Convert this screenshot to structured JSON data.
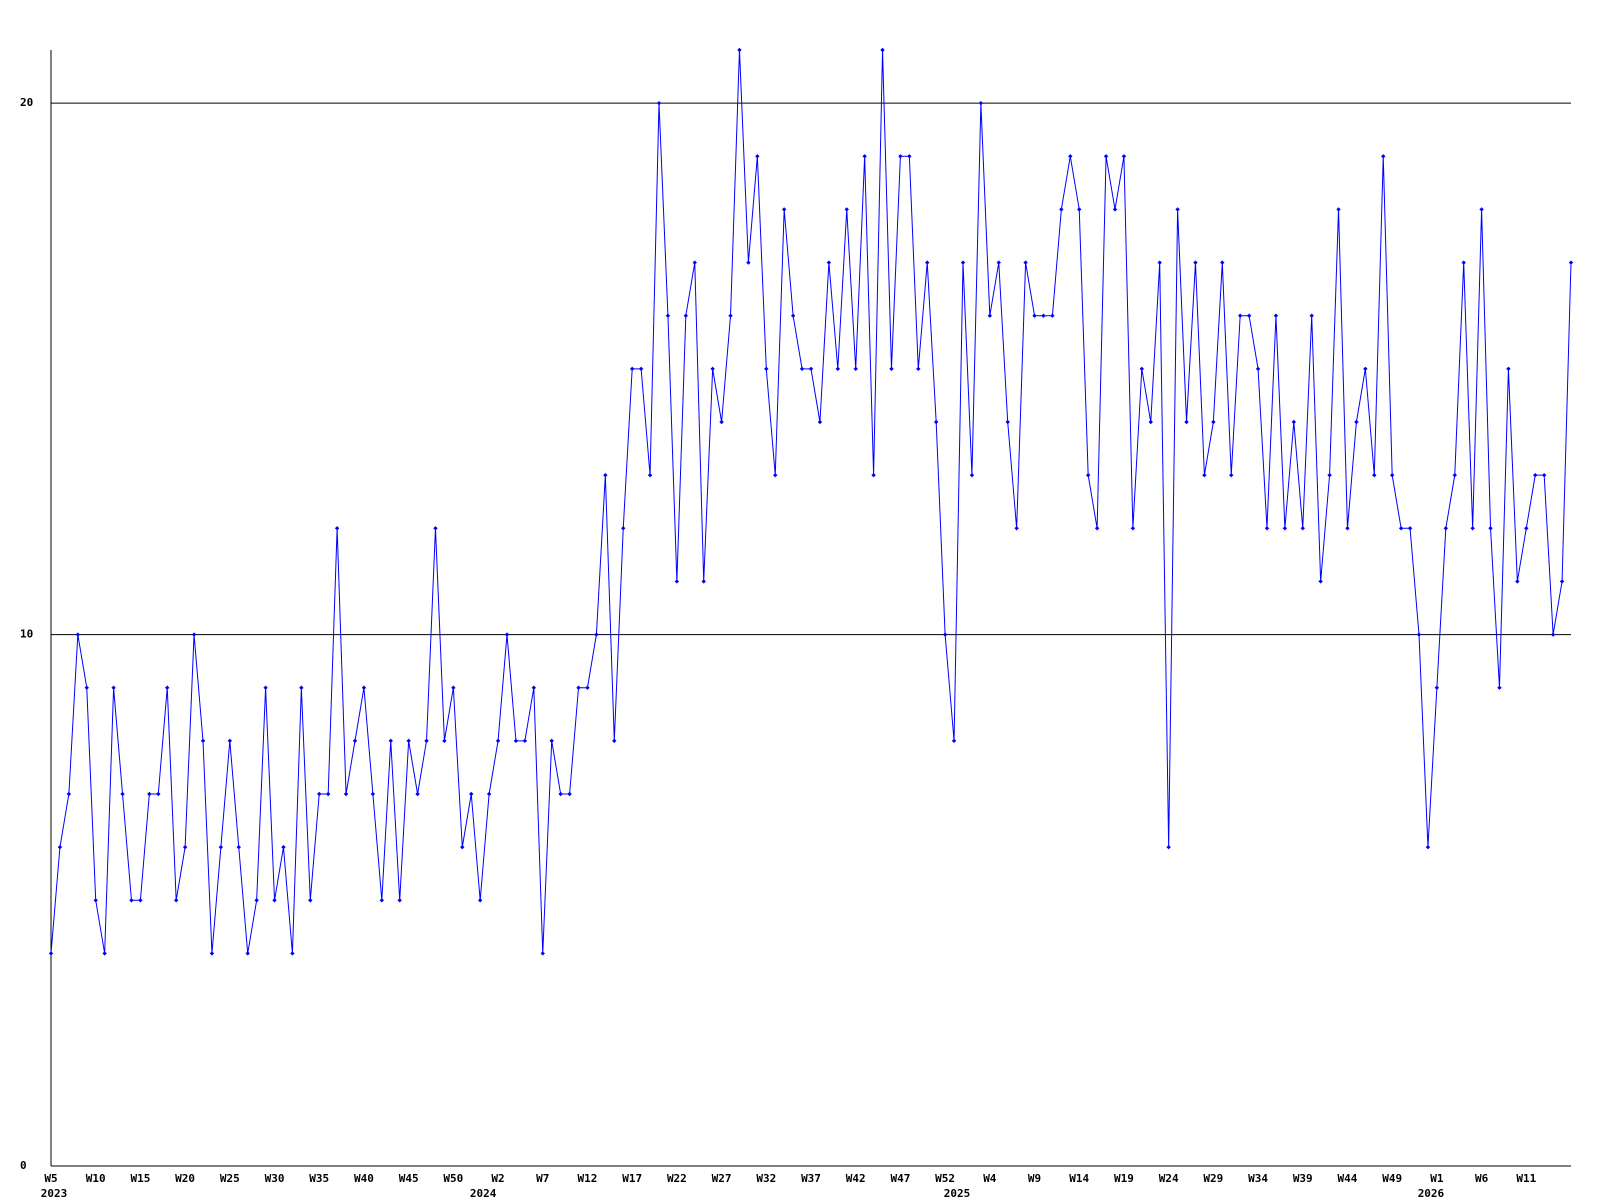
{
  "chart_data": {
    "type": "line",
    "categories": [
      "W5",
      null,
      null,
      null,
      null,
      "W10",
      null,
      null,
      null,
      null,
      "W15",
      null,
      null,
      null,
      null,
      "W20",
      null,
      null,
      null,
      null,
      "W25",
      null,
      null,
      null,
      null,
      "W30",
      null,
      null,
      null,
      null,
      "W35",
      null,
      null,
      null,
      null,
      "W40",
      null,
      null,
      null,
      null,
      "W45",
      null,
      null,
      null,
      null,
      "W50",
      null,
      null,
      null,
      null,
      "W2",
      null,
      null,
      null,
      null,
      "W7",
      null,
      null,
      null,
      null,
      "W12",
      null,
      null,
      null,
      null,
      "W17",
      null,
      null,
      null,
      null,
      "W22",
      null,
      null,
      null,
      null,
      "W27",
      null,
      null,
      null,
      null,
      "W32",
      null,
      null,
      null,
      null,
      "W37",
      null,
      null,
      null,
      null,
      "W42",
      null,
      null,
      null,
      null,
      "W47",
      null,
      null,
      null,
      null,
      "W52",
      null,
      null,
      null,
      null,
      "W4",
      null,
      null,
      null,
      null,
      "W9",
      null,
      null,
      null,
      null,
      "W14",
      null,
      null,
      null,
      null,
      "W19",
      null,
      null,
      null,
      null,
      "W24",
      null,
      null,
      null,
      null,
      "W29",
      null,
      null,
      null,
      null,
      "W34",
      null,
      null,
      null,
      null,
      "W39",
      null,
      null,
      null,
      null,
      "W44",
      null,
      null,
      null,
      null,
      "W49",
      null,
      null,
      null,
      null,
      "W1",
      null,
      null,
      null,
      null,
      "W6",
      null,
      null,
      null,
      null,
      "W11",
      null,
      null,
      null,
      null,
      null
    ],
    "years": [
      "2023",
      null,
      null,
      null,
      null,
      null,
      null,
      null,
      null,
      null,
      null,
      null,
      null,
      null,
      null,
      null,
      null,
      null,
      null,
      null,
      null,
      null,
      null,
      null,
      null,
      null,
      null,
      null,
      null,
      null,
      null,
      null,
      null,
      null,
      null,
      null,
      null,
      null,
      null,
      null,
      null,
      null,
      null,
      null,
      null,
      null,
      null,
      null,
      "2024",
      null,
      null,
      null,
      null,
      null,
      null,
      null,
      null,
      null,
      null,
      null,
      null,
      null,
      null,
      null,
      null,
      null,
      null,
      null,
      null,
      null,
      null,
      null,
      null,
      null,
      null,
      null,
      null,
      null,
      null,
      null,
      null,
      null,
      null,
      null,
      null,
      null,
      null,
      null,
      null,
      null,
      null,
      null,
      null,
      null,
      null,
      null,
      null,
      null,
      null,
      null,
      null,
      "2025",
      null,
      null,
      null,
      null,
      null,
      null,
      null,
      null,
      null,
      null,
      null,
      null,
      null,
      null,
      null,
      null,
      null,
      null,
      null,
      null,
      null,
      null,
      null,
      null,
      null,
      null,
      null,
      null,
      null,
      null,
      null,
      null,
      null,
      null,
      null,
      null,
      null,
      null,
      null,
      null,
      null,
      null,
      null,
      null,
      null,
      null,
      null,
      null,
      null,
      null,
      null,
      null,
      "2026",
      null,
      null,
      null,
      null,
      null,
      null,
      null,
      null,
      null,
      null,
      null,
      null,
      null,
      null,
      null,
      null
    ],
    "values": [
      4,
      6,
      7,
      10,
      9,
      5,
      4,
      9,
      7,
      5,
      5,
      7,
      7,
      9,
      5,
      6,
      10,
      8,
      4,
      6,
      8,
      6,
      4,
      5,
      9,
      5,
      6,
      4,
      9,
      5,
      7,
      7,
      12,
      7,
      8,
      9,
      7,
      5,
      8,
      5,
      8,
      7,
      8,
      12,
      8,
      9,
      6,
      7,
      5,
      7,
      8,
      10,
      8,
      8,
      9,
      4,
      8,
      7,
      7,
      9,
      9,
      10,
      13,
      8,
      12,
      15,
      15,
      13,
      20,
      16,
      11,
      16,
      17,
      11,
      15,
      14,
      16,
      21,
      17,
      19,
      15,
      13,
      18,
      16,
      15,
      15,
      14,
      17,
      15,
      18,
      15,
      19,
      13,
      21,
      15,
      19,
      19,
      15,
      17,
      14,
      10,
      8,
      17,
      13,
      20,
      16,
      17,
      14,
      12,
      17,
      16,
      16,
      16,
      18,
      19,
      18,
      13,
      12,
      19,
      18,
      19,
      12,
      15,
      14,
      17,
      6,
      18,
      14,
      17,
      13,
      14,
      17,
      13,
      16,
      16,
      15,
      12,
      16,
      12,
      14,
      12,
      16,
      11,
      13,
      18,
      12,
      14,
      15,
      13,
      19,
      13,
      12,
      12,
      10,
      6,
      9,
      12,
      13,
      17,
      12,
      18,
      12,
      9,
      15,
      11,
      12,
      13,
      13,
      10,
      11,
      17
    ],
    "color": "#0000ff",
    "ylim": [
      0,
      21
    ],
    "yticks": [
      0,
      10,
      20
    ],
    "grid": true
  }
}
